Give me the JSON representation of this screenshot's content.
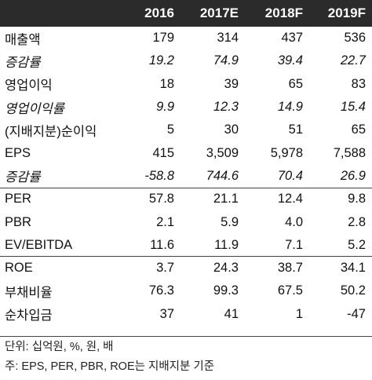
{
  "table": {
    "headers": [
      "",
      "2016",
      "2017E",
      "2018F",
      "2019F"
    ],
    "rows": [
      {
        "label": "매출액",
        "values": [
          "179",
          "314",
          "437",
          "536"
        ],
        "style": "normal"
      },
      {
        "label": "증감률",
        "values": [
          "19.2",
          "74.9",
          "39.4",
          "22.7"
        ],
        "style": "sub"
      },
      {
        "label": "영업이익",
        "values": [
          "18",
          "39",
          "65",
          "83"
        ],
        "style": "normal"
      },
      {
        "label": "영업이익률",
        "values": [
          "9.9",
          "12.3",
          "14.9",
          "15.4"
        ],
        "style": "sub"
      },
      {
        "label": "(지배지분)순이익",
        "values": [
          "5",
          "30",
          "51",
          "65"
        ],
        "style": "normal"
      },
      {
        "label": "EPS",
        "values": [
          "415",
          "3,509",
          "5,978",
          "7,588"
        ],
        "style": "normal"
      },
      {
        "label": "증감률",
        "values": [
          "-58.8",
          "744.6",
          "70.4",
          "26.9"
        ],
        "style": "sub"
      },
      {
        "label": "PER",
        "values": [
          "57.8",
          "21.1",
          "12.4",
          "9.8"
        ],
        "style": "normal"
      },
      {
        "label": "PBR",
        "values": [
          "2.1",
          "5.9",
          "4.0",
          "2.8"
        ],
        "style": "normal"
      },
      {
        "label": "EV/EBITDA",
        "values": [
          "11.6",
          "11.9",
          "7.1",
          "5.2"
        ],
        "style": "normal"
      },
      {
        "label": "ROE",
        "values": [
          "3.7",
          "24.3",
          "38.7",
          "34.1"
        ],
        "style": "normal"
      },
      {
        "label": "부채비율",
        "values": [
          "76.3",
          "99.3",
          "67.5",
          "50.2"
        ],
        "style": "normal"
      },
      {
        "label": "순차입금",
        "values": [
          "37",
          "41",
          "1",
          "-47"
        ],
        "style": "normal"
      }
    ]
  },
  "notes": {
    "unit": "단위: 십억원, %, 원, 배",
    "footnote": "주: EPS, PER, PBR, ROE는 지배지분 기준"
  }
}
